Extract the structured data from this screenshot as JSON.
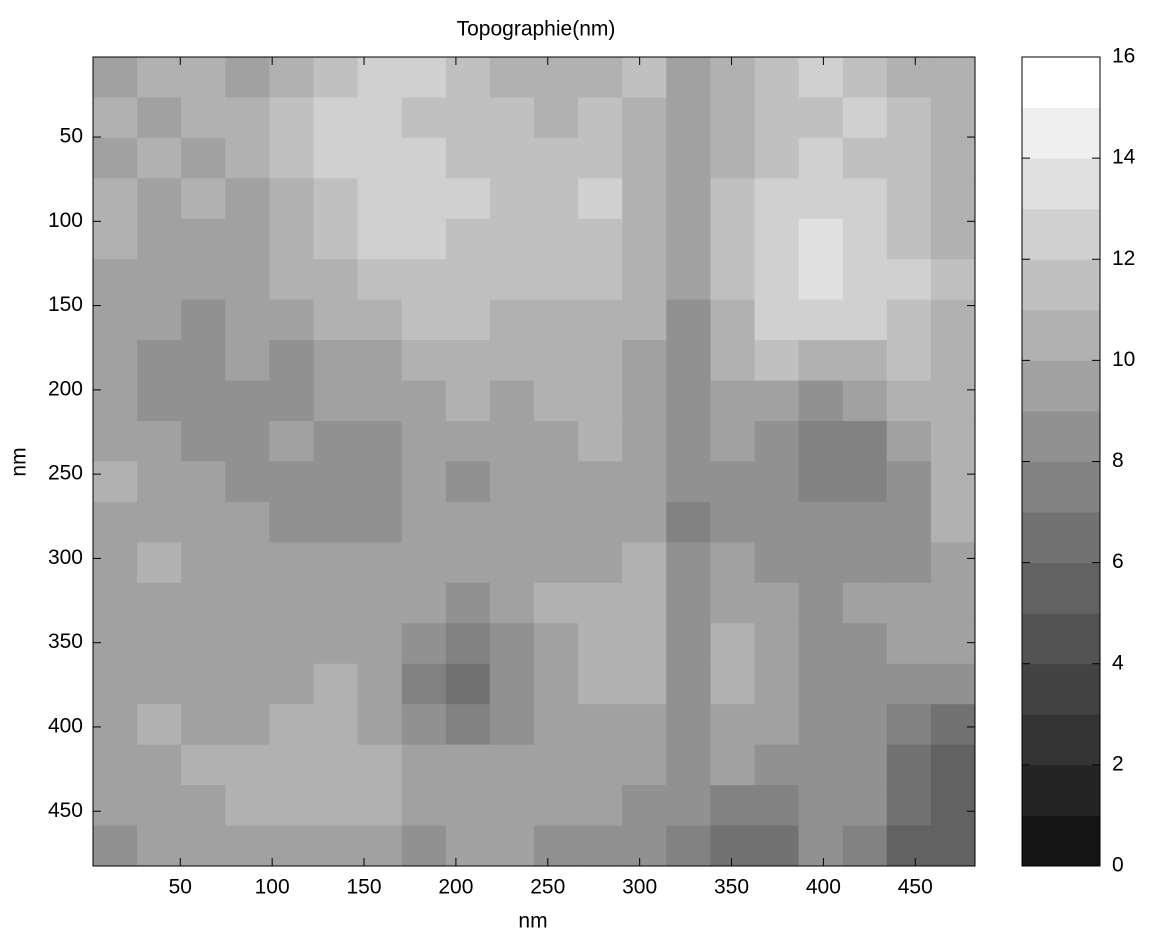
{
  "chart_data": {
    "type": "heatmap",
    "title": "Topographie(nm)",
    "x_label": "nm",
    "y_label": "nm",
    "xlim": [
      2.5,
      482.5
    ],
    "ylim": [
      2.5,
      482.5
    ],
    "y_reversed": true,
    "xticks": [
      50,
      100,
      150,
      200,
      250,
      300,
      350,
      400,
      450
    ],
    "yticks": [
      50,
      100,
      150,
      200,
      250,
      300,
      350,
      400,
      450
    ],
    "colormap": "gray",
    "levels": 16,
    "clim": [
      0,
      16
    ],
    "cticks": [
      0,
      2,
      4,
      6,
      8,
      10,
      12,
      14,
      16
    ],
    "z": [
      [
        9,
        10,
        10,
        9,
        10,
        11,
        12,
        12,
        11,
        10,
        10,
        10,
        11,
        9,
        10,
        11,
        12,
        11,
        10,
        10
      ],
      [
        10,
        9,
        10,
        10,
        11,
        12,
        12,
        11,
        11,
        11,
        10,
        11,
        10,
        9,
        10,
        11,
        11,
        12,
        11,
        10
      ],
      [
        9,
        10,
        9,
        10,
        11,
        12,
        12,
        12,
        11,
        11,
        11,
        11,
        10,
        9,
        10,
        11,
        12,
        11,
        11,
        10
      ],
      [
        10,
        9,
        10,
        9,
        10,
        11,
        12,
        12,
        12,
        11,
        11,
        12,
        10,
        9,
        11,
        12,
        12,
        12,
        11,
        10
      ],
      [
        10,
        9,
        9,
        9,
        10,
        11,
        12,
        12,
        11,
        11,
        11,
        11,
        10,
        9,
        11,
        12,
        13,
        12,
        11,
        10
      ],
      [
        9,
        9,
        9,
        9,
        10,
        10,
        11,
        11,
        11,
        11,
        11,
        11,
        10,
        9,
        11,
        12,
        13,
        12,
        12,
        11
      ],
      [
        9,
        9,
        8,
        9,
        9,
        10,
        10,
        11,
        11,
        10,
        10,
        10,
        10,
        8,
        10,
        12,
        12,
        12,
        11,
        10
      ],
      [
        9,
        8,
        8,
        9,
        8,
        9,
        9,
        10,
        10,
        10,
        10,
        10,
        9,
        8,
        10,
        11,
        10,
        10,
        11,
        10
      ],
      [
        9,
        8,
        8,
        8,
        8,
        9,
        9,
        9,
        10,
        9,
        10,
        10,
        9,
        8,
        9,
        9,
        8,
        9,
        10,
        10
      ],
      [
        9,
        9,
        8,
        8,
        9,
        8,
        8,
        9,
        9,
        9,
        9,
        10,
        9,
        8,
        9,
        8,
        7,
        7,
        9,
        10
      ],
      [
        10,
        9,
        9,
        8,
        8,
        8,
        8,
        9,
        8,
        9,
        9,
        9,
        9,
        8,
        8,
        8,
        7,
        7,
        8,
        10
      ],
      [
        9,
        9,
        9,
        9,
        8,
        8,
        8,
        9,
        9,
        9,
        9,
        9,
        9,
        7,
        8,
        8,
        8,
        8,
        8,
        10
      ],
      [
        9,
        10,
        9,
        9,
        9,
        9,
        9,
        9,
        9,
        9,
        9,
        9,
        10,
        8,
        9,
        8,
        8,
        8,
        8,
        9
      ],
      [
        9,
        9,
        9,
        9,
        9,
        9,
        9,
        9,
        8,
        9,
        10,
        10,
        10,
        8,
        9,
        9,
        8,
        9,
        9,
        9
      ],
      [
        9,
        9,
        9,
        9,
        9,
        9,
        9,
        8,
        7,
        8,
        9,
        10,
        10,
        8,
        10,
        9,
        8,
        8,
        9,
        9
      ],
      [
        9,
        9,
        9,
        9,
        9,
        10,
        9,
        7,
        6,
        8,
        9,
        10,
        10,
        8,
        10,
        9,
        8,
        8,
        8,
        8
      ],
      [
        9,
        10,
        9,
        9,
        10,
        10,
        9,
        8,
        7,
        8,
        9,
        9,
        9,
        8,
        9,
        9,
        8,
        8,
        7,
        6
      ],
      [
        9,
        9,
        10,
        10,
        10,
        10,
        10,
        9,
        9,
        9,
        9,
        9,
        9,
        8,
        9,
        8,
        8,
        8,
        6,
        5
      ],
      [
        9,
        9,
        9,
        10,
        10,
        10,
        10,
        9,
        9,
        9,
        9,
        9,
        8,
        8,
        7,
        7,
        8,
        8,
        6,
        5
      ],
      [
        8,
        9,
        9,
        9,
        9,
        9,
        9,
        8,
        9,
        9,
        8,
        8,
        8,
        7,
        6,
        6,
        8,
        7,
        5,
        5
      ]
    ]
  }
}
